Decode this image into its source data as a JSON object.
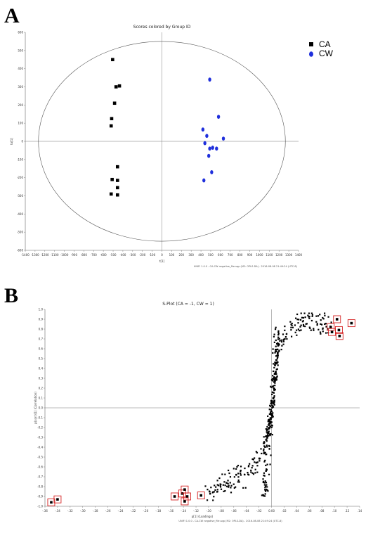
{
  "panels": {
    "a_label": "A",
    "b_label": "B"
  },
  "chart_data": [
    {
      "type": "scatter",
      "title": "Scores colored by Group ID",
      "xlabel": "t[1]",
      "ylabel": "to[1]",
      "footer": "UNIFI 1.0.0 - CA-CW negative_file.sqp (M2: OPLS-DA) - 2016-08-08 21:49:24 (UTC-8)",
      "xlim": [
        -1400,
        1400
      ],
      "ylim": [
        -600,
        600
      ],
      "xticks": [
        -1400,
        -1300,
        -1200,
        -1100,
        -1000,
        -900,
        -800,
        -700,
        -600,
        -500,
        -400,
        -300,
        -200,
        -100,
        0,
        100,
        200,
        300,
        400,
        500,
        600,
        700,
        800,
        900,
        1000,
        1100,
        1200,
        1300,
        1400
      ],
      "yticks": [
        -600,
        -500,
        -400,
        -300,
        -200,
        -100,
        0,
        100,
        200,
        300,
        400,
        500,
        600
      ],
      "ellipse": {
        "rx": 1265,
        "ry": 550
      },
      "grid": false,
      "legend_position": "top-right",
      "series": [
        {
          "name": "CA",
          "color": "#000000",
          "marker": "square",
          "points": [
            [
              -505,
              450
            ],
            [
              -470,
              300
            ],
            [
              -435,
              305
            ],
            [
              -485,
              210
            ],
            [
              -515,
              125
            ],
            [
              -520,
              85
            ],
            [
              -455,
              -140
            ],
            [
              -510,
              -210
            ],
            [
              -455,
              -215
            ],
            [
              -455,
              -255
            ],
            [
              -520,
              -290
            ],
            [
              -455,
              -295
            ]
          ]
        },
        {
          "name": "CW",
          "color": "#1f2fdc",
          "marker": "circle",
          "points": [
            [
              490,
              340
            ],
            [
              580,
              135
            ],
            [
              420,
              65
            ],
            [
              460,
              30
            ],
            [
              630,
              15
            ],
            [
              440,
              -10
            ],
            [
              520,
              -35
            ],
            [
              560,
              -40
            ],
            [
              490,
              -40
            ],
            [
              480,
              -80
            ],
            [
              510,
              -170
            ],
            [
              430,
              -215
            ]
          ]
        }
      ]
    },
    {
      "type": "scatter",
      "title": "S-Plot (CA = -1, CW = 1)",
      "xlabel": "p[1] (Loadings)",
      "ylabel": "p(corr)[1] (Correlation)",
      "footer": "UNIFI 1.0.0 - CA-CW negative_file.sqp (M2: OPLS-DA) - 2016-08-08 21:49:24 (UTC-8)",
      "xlim": [
        -0.36,
        0.14
      ],
      "ylim": [
        -1.0,
        1.0
      ],
      "xticks": [
        -0.36,
        -0.34,
        -0.32,
        -0.3,
        -0.28,
        -0.26,
        -0.24,
        -0.22,
        -0.2,
        -0.18,
        -0.16,
        -0.14,
        -0.12,
        -0.1,
        -0.08,
        -0.06,
        -0.04,
        -0.02,
        0.0,
        0.02,
        0.04,
        0.06,
        0.08,
        0.1,
        0.12,
        0.14
      ],
      "yticks": [
        -1.0,
        -0.9,
        -0.8,
        -0.7,
        -0.6,
        -0.5,
        -0.4,
        -0.3,
        -0.2,
        -0.1,
        0.0,
        0.1,
        0.2,
        0.3,
        0.4,
        0.5,
        0.6,
        0.7,
        0.8,
        0.9,
        1.0
      ],
      "grid": false,
      "marker_color": "#000000",
      "highlight_color": "#d42020",
      "highlighted_points": [
        [
          -0.35,
          -0.96
        ],
        [
          -0.34,
          -0.93
        ],
        [
          -0.154,
          -0.9
        ],
        [
          -0.142,
          -0.87
        ],
        [
          -0.138,
          -0.83
        ],
        [
          -0.134,
          -0.9
        ],
        [
          -0.138,
          -0.95
        ],
        [
          -0.112,
          -0.89
        ],
        [
          0.094,
          0.82
        ],
        [
          0.096,
          0.77
        ],
        [
          0.104,
          0.9
        ],
        [
          0.107,
          0.79
        ],
        [
          0.108,
          0.73
        ],
        [
          0.127,
          0.86
        ]
      ],
      "curve_points": [
        [
          -0.1,
          -0.88
        ],
        [
          -0.095,
          -0.85
        ],
        [
          -0.09,
          -0.82
        ],
        [
          -0.085,
          -0.79
        ],
        [
          -0.08,
          -0.76
        ],
        [
          -0.075,
          -0.79
        ],
        [
          -0.07,
          -0.74
        ],
        [
          -0.065,
          -0.72
        ],
        [
          -0.06,
          -0.76
        ],
        [
          -0.055,
          -0.7
        ],
        [
          -0.05,
          -0.68
        ],
        [
          -0.045,
          -0.72
        ],
        [
          -0.04,
          -0.66
        ],
        [
          -0.035,
          -0.62
        ],
        [
          -0.03,
          -0.6
        ],
        [
          -0.025,
          -0.56
        ],
        [
          -0.02,
          -0.5
        ],
        [
          -0.015,
          -0.44
        ],
        [
          -0.01,
          -0.38
        ],
        [
          -0.007,
          -0.3
        ],
        [
          -0.004,
          -0.2
        ],
        [
          -0.002,
          -0.1
        ],
        [
          0.0,
          0.0
        ],
        [
          0.002,
          0.12
        ],
        [
          0.004,
          0.25
        ],
        [
          0.006,
          0.38
        ],
        [
          0.008,
          0.5
        ],
        [
          0.01,
          0.58
        ],
        [
          0.015,
          0.66
        ],
        [
          0.02,
          0.72
        ],
        [
          0.025,
          0.76
        ],
        [
          0.03,
          0.8
        ],
        [
          0.035,
          0.83
        ],
        [
          0.04,
          0.86
        ],
        [
          0.045,
          0.88
        ],
        [
          0.05,
          0.89
        ],
        [
          0.055,
          0.87
        ],
        [
          0.06,
          0.9
        ],
        [
          0.065,
          0.86
        ],
        [
          0.07,
          0.88
        ],
        [
          0.075,
          0.85
        ],
        [
          0.08,
          0.87
        ],
        [
          0.085,
          0.84
        ],
        [
          0.09,
          0.86
        ]
      ]
    }
  ]
}
